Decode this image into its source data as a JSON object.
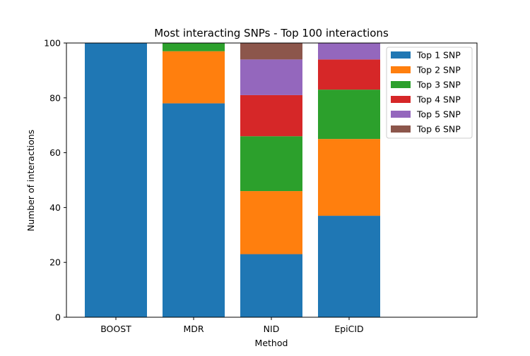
{
  "chart_data": {
    "type": "bar",
    "stacked": true,
    "title": "Most interacting SNPs - Top 100 interactions",
    "xlabel": "Method",
    "ylabel": "Number of interactions",
    "categories": [
      "BOOST",
      "MDR",
      "NID",
      "EpiCID"
    ],
    "ylim": [
      0,
      100
    ],
    "yticks": [
      0,
      20,
      40,
      60,
      80,
      100
    ],
    "grid": false,
    "legend_position": "top-right",
    "series": [
      {
        "name": "Top 1 SNP",
        "color": "#1f77b4",
        "values": [
          100,
          78,
          23,
          37
        ]
      },
      {
        "name": "Top 2 SNP",
        "color": "#ff7f0e",
        "values": [
          0,
          19,
          23,
          28
        ]
      },
      {
        "name": "Top 3 SNP",
        "color": "#2ca02c",
        "values": [
          0,
          3,
          20,
          18
        ]
      },
      {
        "name": "Top 4 SNP",
        "color": "#d62728",
        "values": [
          0,
          0,
          15,
          11
        ]
      },
      {
        "name": "Top 5 SNP",
        "color": "#9467bd",
        "values": [
          0,
          0,
          13,
          6
        ]
      },
      {
        "name": "Top 6 SNP",
        "color": "#8c564b",
        "values": [
          0,
          0,
          6,
          0
        ]
      }
    ]
  }
}
